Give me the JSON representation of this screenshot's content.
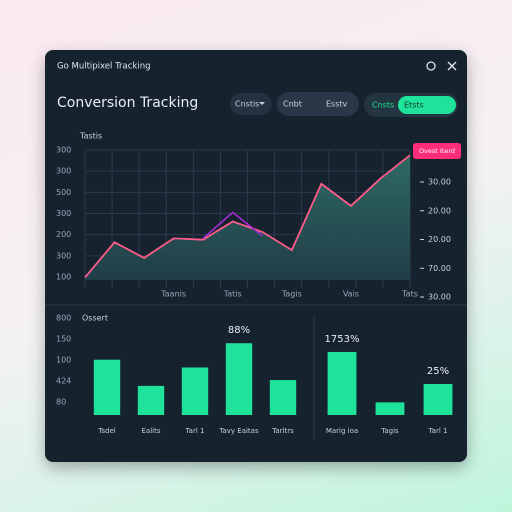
{
  "window": {
    "title": "Go Multipixel Tracking"
  },
  "header": {
    "title": "Conversion Tracking"
  },
  "controls": {
    "dropdown": "Cnstis",
    "segment": [
      "Cnbt",
      "Esstv"
    ],
    "toggle": [
      "Cnsts",
      "Etsts"
    ]
  },
  "chart_data": [
    {
      "type": "line",
      "title": "Tastis",
      "legend_badge": "Ovest Iterd",
      "y_labels": [
        "300",
        "300",
        "500",
        "300",
        "200",
        "300",
        "100"
      ],
      "y2_labels": [
        "30.00",
        "20.00",
        "20.00",
        "70.00",
        "30.00"
      ],
      "ylim": [
        0,
        100
      ],
      "categories": [
        null,
        null,
        null,
        "Taanis",
        null,
        "Tatis",
        null,
        "Tagis",
        null,
        "Vais",
        null,
        "Tats"
      ],
      "series": [
        {
          "color": "#ff5c8a",
          "values": [
            2,
            29,
            17,
            32,
            31,
            45,
            37,
            23,
            74,
            57,
            78,
            96
          ]
        },
        {
          "color": "#a62bd8",
          "values": [
            null,
            null,
            null,
            null,
            32,
            52,
            34,
            null,
            null,
            null,
            null,
            null
          ]
        }
      ],
      "grid": true
    },
    {
      "type": "bar",
      "title": "Ossert",
      "y_labels": [
        "800",
        "150",
        "100",
        "424",
        "80"
      ],
      "ylim": [
        0,
        100
      ],
      "categories": [
        "Tsdel",
        "Ealits",
        "Tarl 1",
        "Tavy Eaitas",
        "Tarltrs"
      ],
      "values": [
        57,
        30,
        49,
        74,
        36
      ],
      "annotations": [
        "88%"
      ],
      "color": "#1fe39a"
    },
    {
      "type": "bar",
      "ylim": [
        0,
        100
      ],
      "categories": [
        "Marig ioa",
        "Tagis",
        "Tarl 1"
      ],
      "values": [
        65,
        13,
        32
      ],
      "annotations": [
        "1753%",
        "25%"
      ],
      "color": "#1fe39a"
    }
  ]
}
